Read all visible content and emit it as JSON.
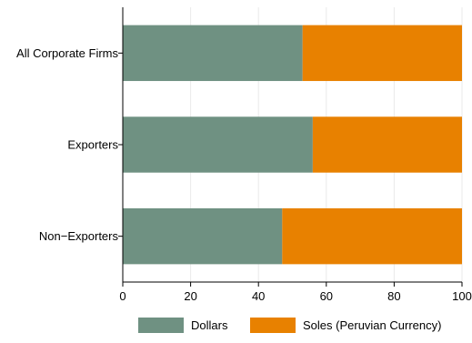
{
  "chart_data": {
    "type": "bar",
    "orientation": "horizontal",
    "stacked": true,
    "categories": [
      "All Corporate Firms",
      "Exporters",
      "Non−Exporters"
    ],
    "series": [
      {
        "name": "Dollars",
        "values": [
          53,
          56,
          47
        ]
      },
      {
        "name": "Soles (Peruvian Currency)",
        "values": [
          47,
          44,
          53
        ]
      }
    ],
    "xlim": [
      0,
      100
    ],
    "xticks": [
      "0",
      "20",
      "40",
      "60",
      "80",
      "100"
    ],
    "grid": "vertical",
    "legend_position": "bottom",
    "colors": {
      "Dollars": "#6f9182",
      "Soles (Peruvian Currency)": "#e88100",
      "grid": "#eaeaea",
      "axis": "#000000"
    }
  }
}
